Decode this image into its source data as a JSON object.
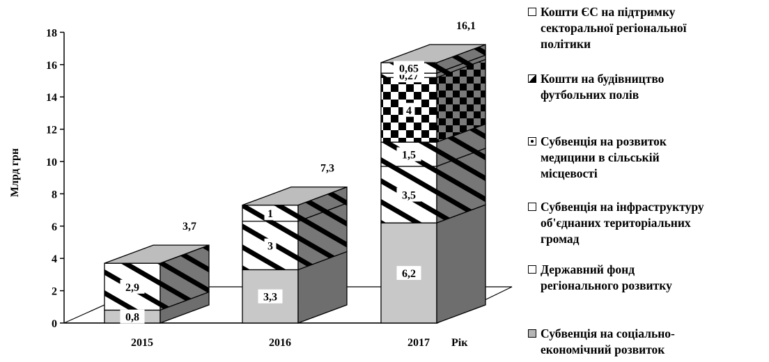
{
  "chart_data": {
    "type": "bar",
    "stacked": true,
    "three_d": true,
    "categories": [
      "2015",
      "2016",
      "2017"
    ],
    "xlabel": "Рік",
    "ylabel": "Млрд грн",
    "ylim": [
      0,
      18
    ],
    "yticks": [
      0,
      2,
      4,
      6,
      8,
      10,
      12,
      14,
      16,
      18
    ],
    "legend_position": "right",
    "series": [
      {
        "name": "Субвенція на соціально-економічний розвиток",
        "values": [
          0.8,
          3.3,
          6.2
        ],
        "labels": [
          "0,8",
          "3,3",
          "6,2"
        ],
        "color": "#c8c8c8"
      },
      {
        "name": "Державний фонд регіонального розвитку",
        "values": [
          2.9,
          3,
          3.5
        ],
        "labels": [
          "2,9",
          "3",
          "3,5"
        ],
        "color": "#ffffff"
      },
      {
        "name": "Субвенція на інфраструктуру об'єднаних територіальних громад",
        "values": [
          0,
          1,
          1.5
        ],
        "labels": [
          "",
          "1",
          "1,5"
        ],
        "color": "#ffffff"
      },
      {
        "name": "Субвенція на розвиток медицини в сільській місцевості",
        "values": [
          0,
          0,
          4
        ],
        "labels": [
          "",
          "",
          "4"
        ],
        "color": "#ffffff"
      },
      {
        "name": "Кошти на будівництво футбольних полів",
        "values": [
          0,
          0,
          0.27
        ],
        "labels": [
          "",
          "",
          "0,27"
        ],
        "color": "#ffffff"
      },
      {
        "name": "Кошти ЄС на підтримку секторальної регіональної політики",
        "values": [
          0,
          0,
          0.65
        ],
        "labels": [
          "",
          "",
          "0,65"
        ],
        "color": "#ffffff"
      }
    ],
    "totals": [
      "3,7",
      "7,3",
      "16,1"
    ],
    "totals_values": [
      3.7,
      7.3,
      16.1
    ]
  },
  "legend": [
    {
      "text": "Кошти ЄС на підтримку\nсекторальної регіональної\nполітики",
      "swatch": "plain"
    },
    {
      "text": "Кошти на будівництво\nфутбольних полів",
      "swatch": "half"
    },
    {
      "text": "Субвенція на розвиток\nмедицини в сільській\nмісцевості",
      "swatch": "dot"
    },
    {
      "text": "Субвенція на інфраструктуру\nоб'єднаних територіальних\nгромад",
      "swatch": "plain"
    },
    {
      "text": "Державний фонд\nрегіонального розвитку",
      "swatch": "plain"
    },
    {
      "text": "Субвенція на соціально-\nекономічний розвиток",
      "swatch": "gray"
    }
  ]
}
